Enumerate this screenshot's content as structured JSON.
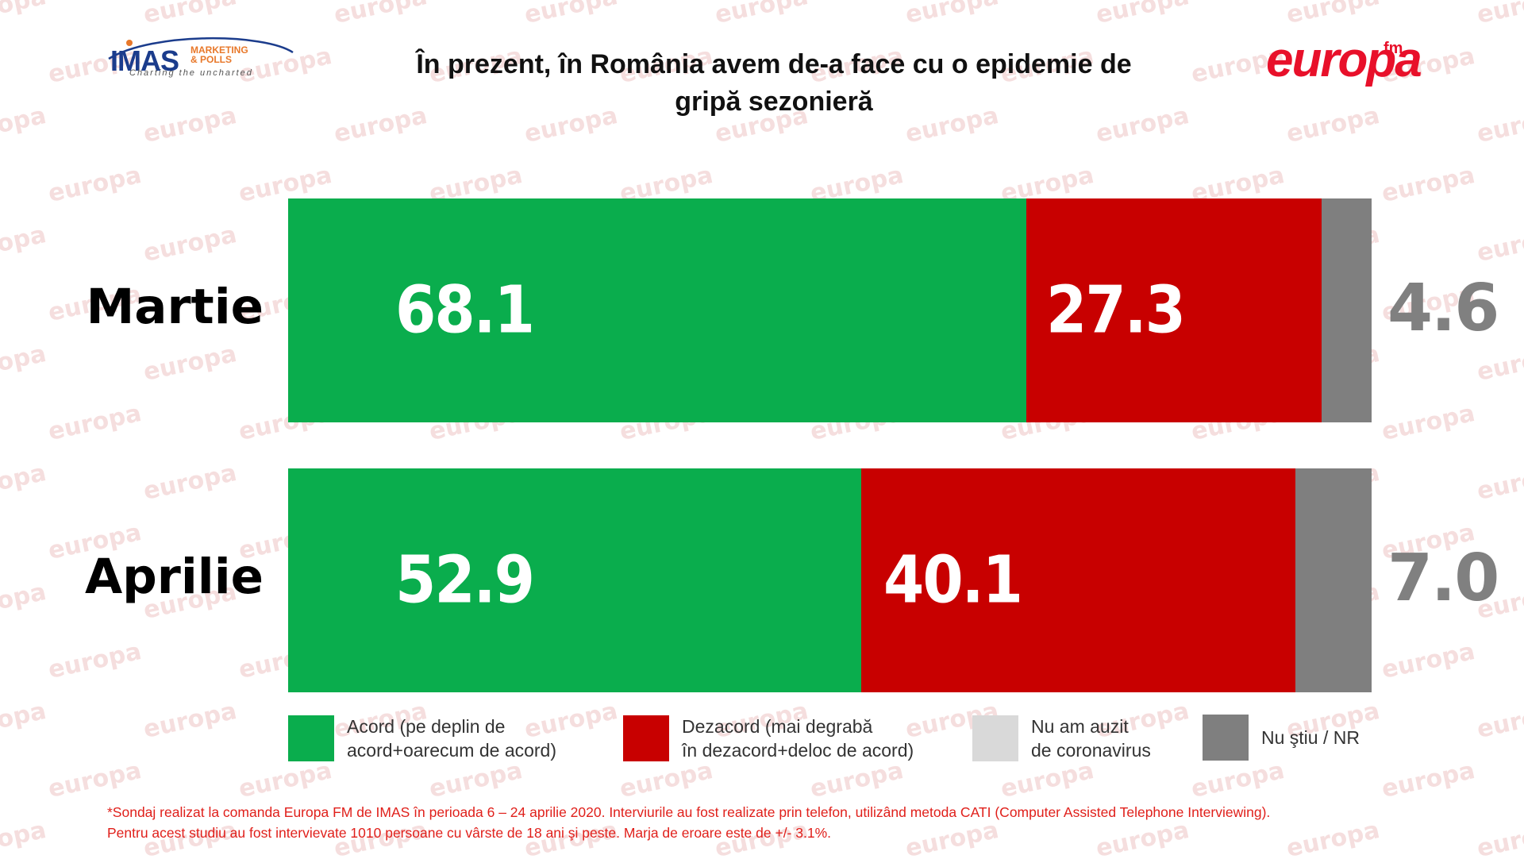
{
  "logos": {
    "imas_main": "IMAS",
    "imas_sub": "MARKETING\n& POLLS",
    "imas_tagline": "Charting the uncharted",
    "europa_word": "europa",
    "europa_fm": "fm",
    "watermark_text": "europa"
  },
  "colors": {
    "acord": "#0aad4d",
    "dezacord": "#c80000",
    "nu_am_auzit": "#d9d9d9",
    "nu_stiu": "#7f7f7f"
  },
  "chart_data": {
    "type": "bar",
    "orientation": "horizontal",
    "stacked": true,
    "title": "În prezent, în România avem de-a face cu o epidemie de gripă sezonieră",
    "categories": [
      "Martie",
      "Aprilie"
    ],
    "series": [
      {
        "name": "Acord (pe deplin de\nacord+oarecum de acord)",
        "values": [
          68.1,
          52.9
        ]
      },
      {
        "name": "Dezacord  (mai degrabă\nîn dezacord+deloc de acord)",
        "values": [
          27.3,
          40.1
        ]
      },
      {
        "name": "Nu am auzit\nde coronavirus",
        "values": [
          0,
          0
        ]
      },
      {
        "name": "Nu ştiu / NR",
        "values": [
          4.6,
          7.0
        ]
      }
    ],
    "value_labels": [
      [
        "68.1",
        "27.3",
        "",
        "4.6"
      ],
      [
        "52.9",
        "40.1",
        "",
        "7.0"
      ]
    ],
    "xlim": [
      0,
      100
    ],
    "grid": false,
    "legend_position": "bottom"
  },
  "footnote": "*Sondaj realizat la comanda Europa FM de IMAS în perioada  6 – 24 aprilie 2020. Interviurile au fost realizate prin telefon, utilizând metoda CATI (Computer Assisted Telephone Interviewing).\nPentru acest studiu au fost intervievate 1010 persoane cu vârste de 18 ani şi peste. Marja de eroare este de +/- 3.1%."
}
